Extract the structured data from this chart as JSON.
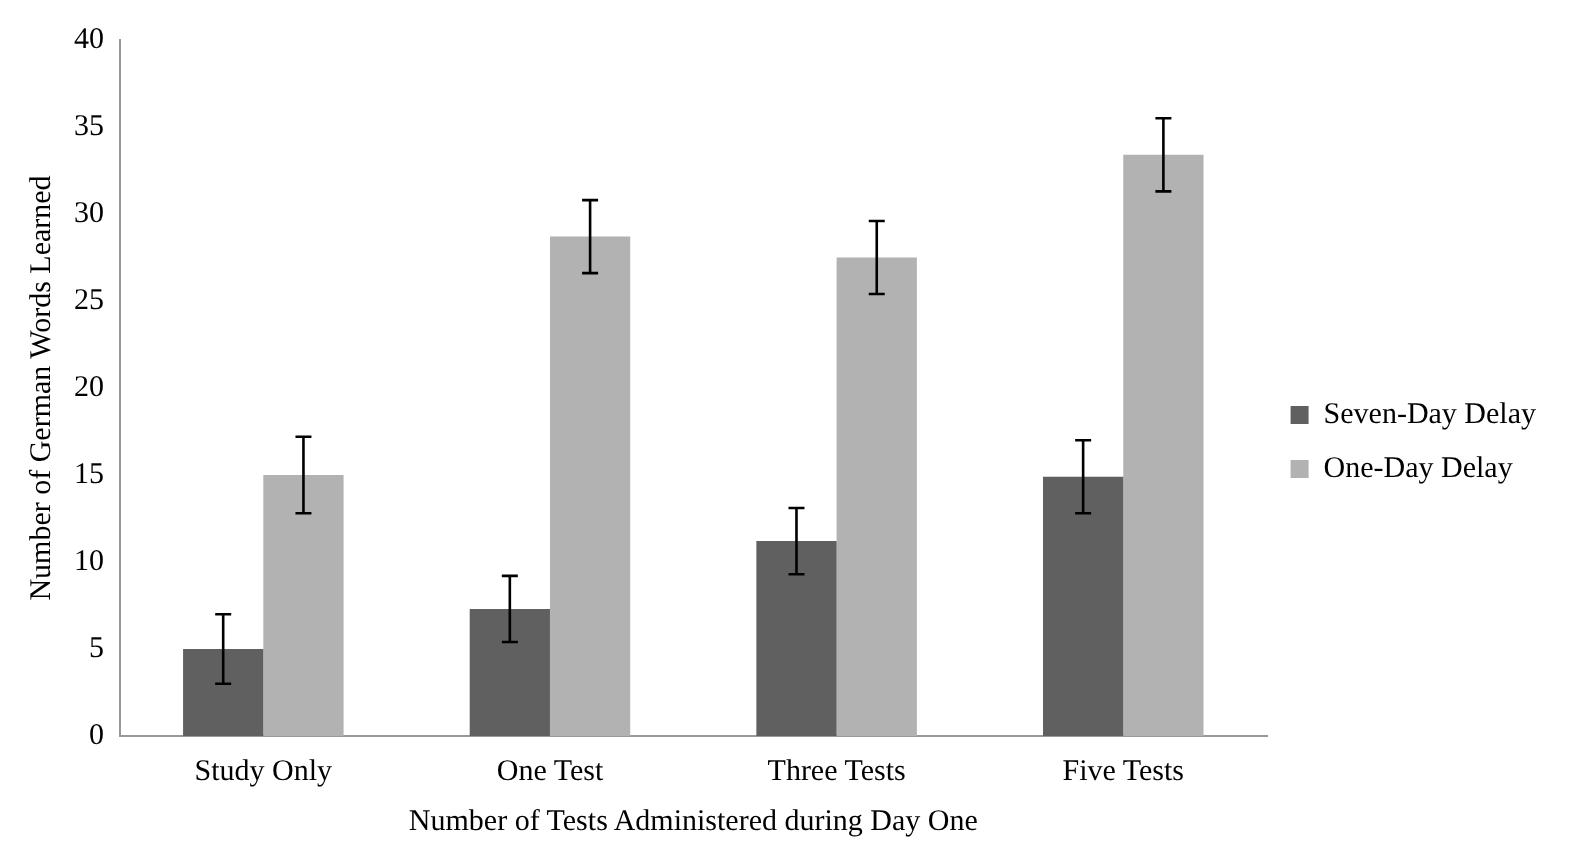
{
  "chart_data": {
    "type": "bar",
    "xlabel": "Number of Tests Administered during Day One",
    "ylabel": "Number of German Words Learned",
    "categories": [
      "Study Only",
      "One Test",
      "Three Tests",
      "Five Tests"
    ],
    "series": [
      {
        "name": "Seven-Day Delay",
        "color": "#606060",
        "values": [
          5.0,
          7.3,
          11.2,
          14.9
        ],
        "errors": [
          2.0,
          1.9,
          1.9,
          2.1
        ]
      },
      {
        "name": "One-Day Delay",
        "color": "#b2b2b2",
        "values": [
          15.0,
          28.7,
          27.5,
          33.4
        ],
        "errors": [
          2.2,
          2.1,
          2.1,
          2.1
        ]
      }
    ],
    "ylim": [
      0,
      40
    ],
    "yticks": [
      0,
      5,
      10,
      15,
      20,
      25,
      30,
      35,
      40
    ],
    "grid": false,
    "legend": "right"
  }
}
